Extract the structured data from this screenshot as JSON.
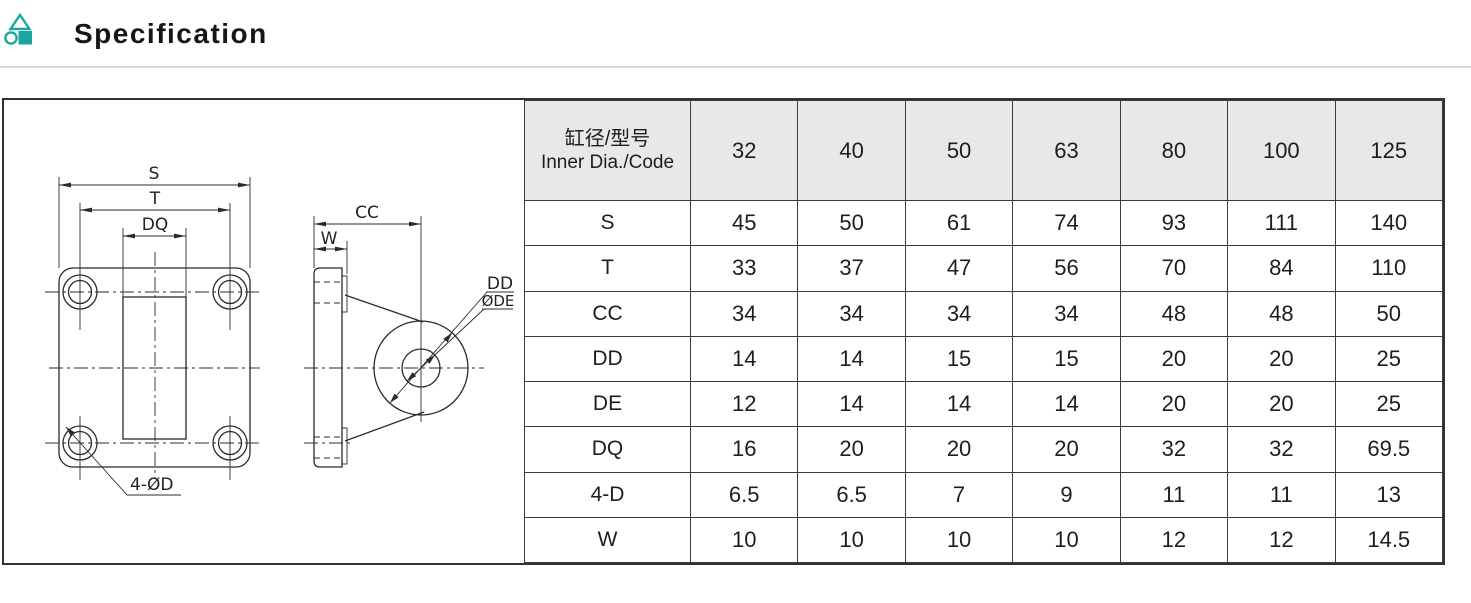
{
  "header": {
    "title": "Specification",
    "accent_color": "#1aa5a0"
  },
  "drawing": {
    "front": {
      "s": "S",
      "t": "T",
      "dq": "DQ",
      "holes": "4-ØD"
    },
    "side": {
      "cc": "CC",
      "w": "W",
      "dd": "DD",
      "de": "ØDE"
    }
  },
  "table": {
    "header": {
      "cn": "缸径/型号",
      "en": "Inner Dia./Code"
    },
    "columns": [
      "32",
      "40",
      "50",
      "63",
      "80",
      "100",
      "125"
    ],
    "rows": [
      {
        "label": "S",
        "values": [
          "45",
          "50",
          "61",
          "74",
          "93",
          "111",
          "140"
        ]
      },
      {
        "label": "T",
        "values": [
          "33",
          "37",
          "47",
          "56",
          "70",
          "84",
          "110"
        ]
      },
      {
        "label": "CC",
        "values": [
          "34",
          "34",
          "34",
          "34",
          "48",
          "48",
          "50"
        ]
      },
      {
        "label": "DD",
        "values": [
          "14",
          "14",
          "15",
          "15",
          "20",
          "20",
          "25"
        ]
      },
      {
        "label": "DE",
        "values": [
          "12",
          "14",
          "14",
          "14",
          "20",
          "20",
          "25"
        ]
      },
      {
        "label": "DQ",
        "values": [
          "16",
          "20",
          "20",
          "20",
          "32",
          "32",
          "69.5"
        ]
      },
      {
        "label": "4-D",
        "values": [
          "6.5",
          "6.5",
          "7",
          "9",
          "11",
          "11",
          "13"
        ]
      },
      {
        "label": "W",
        "values": [
          "10",
          "10",
          "10",
          "10",
          "12",
          "12",
          "14.5"
        ]
      }
    ]
  }
}
